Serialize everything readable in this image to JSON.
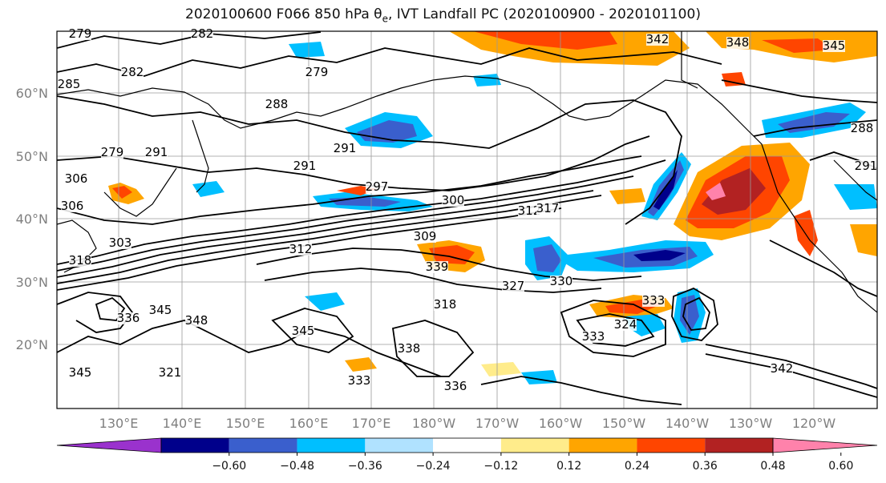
{
  "title_main": "2020100600 F066 850 hPa θ",
  "title_sub": "e",
  "title_rest": ", IVT Landfall PC (2020100900 - 2020101100)",
  "lat_labels": [
    "60°N",
    "50°N",
    "40°N",
    "30°N",
    "20°N"
  ],
  "lon_labels": [
    "130°E",
    "140°E",
    "150°E",
    "160°E",
    "170°E",
    "180°W",
    "170°W",
    "160°W",
    "150°W",
    "140°W",
    "130°W",
    "120°W"
  ],
  "colorbar": {
    "colors": [
      "#9a32cd",
      "#00008b",
      "#3a5fcd",
      "#00bfff",
      "#b0e2ff",
      "#ffffff",
      "#ffec8b",
      "#ffa500",
      "#ff4500",
      "#b22222",
      "#ff82ab"
    ],
    "ticks": [
      "−0.60",
      "−0.48",
      "−0.36",
      "−0.24",
      "−0.12",
      "0.12",
      "0.24",
      "0.36",
      "0.48",
      "0.60"
    ]
  },
  "contour_labels": [
    "279",
    "282",
    "282",
    "285",
    "288",
    "279",
    "291",
    "291",
    "291",
    "297",
    "300",
    "306",
    "303",
    "309",
    "312",
    "317",
    "312",
    "339",
    "330",
    "327",
    "333",
    "324",
    "318",
    "336",
    "345",
    "348",
    "345",
    "338",
    "333",
    "336",
    "333",
    "342",
    "345",
    "321",
    "342",
    "348",
    "345",
    "288",
    "291",
    "279",
    "306",
    "318"
  ]
}
